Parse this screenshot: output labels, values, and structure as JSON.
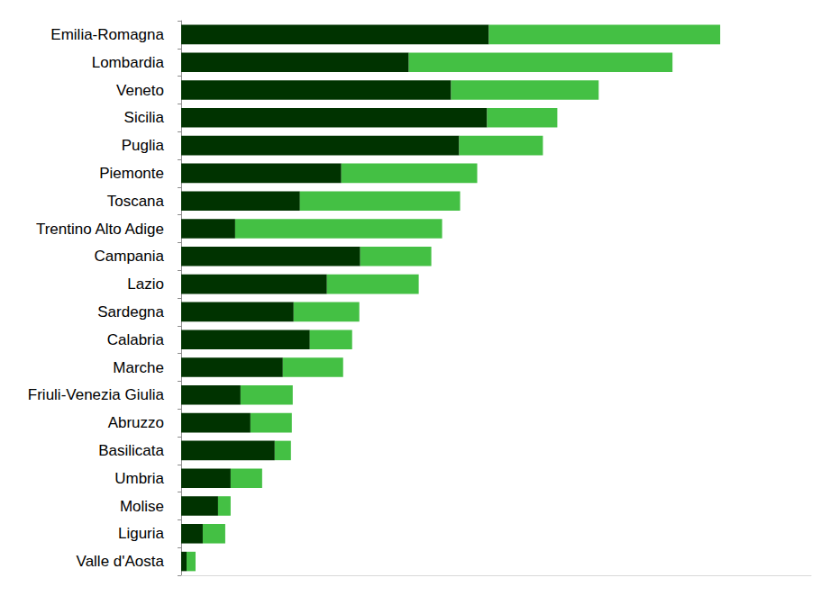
{
  "chart_data": {
    "type": "bar",
    "orientation": "horizontal",
    "stacked": true,
    "grid": false,
    "tick_labels": "y",
    "xlim": [
      0,
      700
    ],
    "categories": [
      "Emilia-Romagna",
      "Lombardia",
      "Veneto",
      "Sicilia",
      "Puglia",
      "Piemonte",
      "Toscana",
      "Trentino Alto Adige",
      "Campania",
      "Lazio",
      "Sardegna",
      "Calabria",
      "Marche",
      "Friuli-Venezia Giulia",
      "Abruzzo",
      "Basilicata",
      "Umbria",
      "Molise",
      "Liguria",
      "Valle d'Aosta"
    ],
    "series": [
      {
        "color": "#003300",
        "values": [
          342,
          253,
          300,
          340,
          309,
          178,
          132,
          60,
          199,
          162,
          125,
          143,
          113,
          66,
          77,
          104,
          55,
          41,
          24,
          6
        ]
      },
      {
        "color": "#44c044",
        "values": [
          257,
          293,
          164,
          78,
          93,
          151,
          178,
          230,
          79,
          102,
          73,
          47,
          67,
          58,
          46,
          18,
          35,
          14,
          25,
          10
        ]
      }
    ]
  }
}
